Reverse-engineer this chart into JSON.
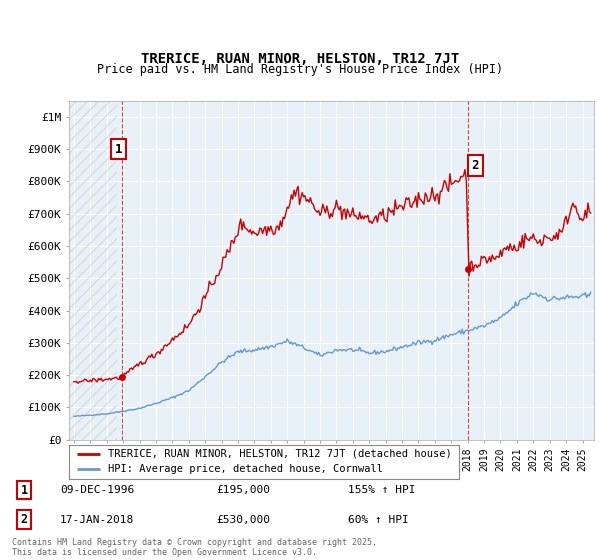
{
  "title": "TRERICE, RUAN MINOR, HELSTON, TR12 7JT",
  "subtitle": "Price paid vs. HM Land Registry's House Price Index (HPI)",
  "ylim": [
    0,
    1050000
  ],
  "yticks": [
    0,
    100000,
    200000,
    300000,
    400000,
    500000,
    600000,
    700000,
    800000,
    900000,
    1000000
  ],
  "ytick_labels": [
    "£0",
    "£100K",
    "£200K",
    "£300K",
    "£400K",
    "£500K",
    "£600K",
    "£700K",
    "£800K",
    "£900K",
    "£1M"
  ],
  "xlim_start": 1993.7,
  "xlim_end": 2025.7,
  "sale1_x": 1996.94,
  "sale1_y": 195000,
  "sale1_label": "1",
  "sale1_date": "09-DEC-1996",
  "sale1_price": "£195,000",
  "sale1_hpi": "155% ↑ HPI",
  "sale2_x": 2018.05,
  "sale2_y": 530000,
  "sale2_label": "2",
  "sale2_date": "17-JAN-2018",
  "sale2_price": "£530,000",
  "sale2_hpi": "60% ↑ HPI",
  "legend_label1": "TRERICE, RUAN MINOR, HELSTON, TR12 7JT (detached house)",
  "legend_label2": "HPI: Average price, detached house, Cornwall",
  "footer": "Contains HM Land Registry data © Crown copyright and database right 2025.\nThis data is licensed under the Open Government Licence v3.0.",
  "line1_color": "#cc0000",
  "line2_color": "#6699cc",
  "chart_bg": "#e8f0f8",
  "grid_color": "#ffffff",
  "sale_marker_color": "#cc0000",
  "dashed_line_color": "#cc3333",
  "hatch_color": "#c8c8c8"
}
